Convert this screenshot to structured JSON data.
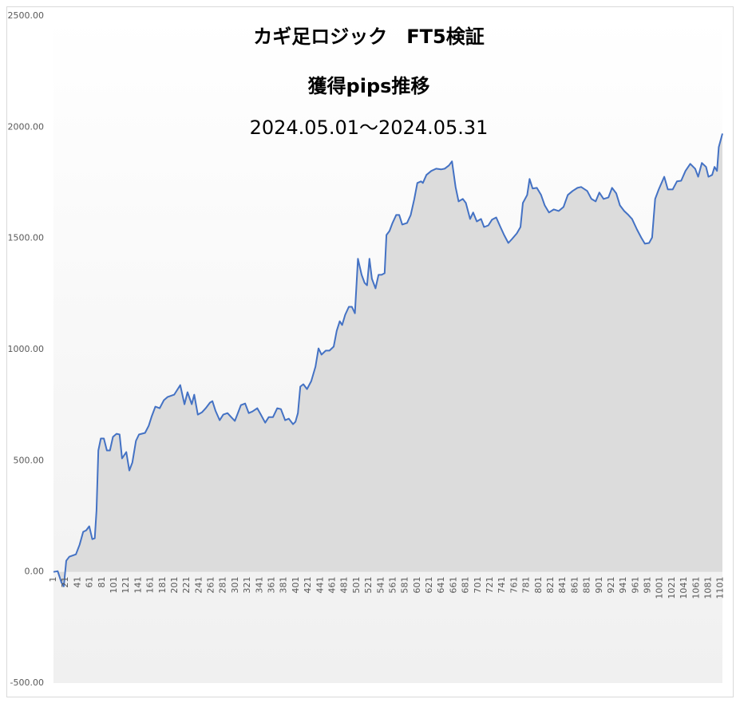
{
  "chart_data": {
    "type": "area",
    "title": [
      "カギ足ロジック　FT5検証",
      "獲得pips推移",
      "2024.05.01～2024.05.31"
    ],
    "color": "#4472c4",
    "x": [
      1,
      8,
      14,
      18,
      22,
      27,
      38,
      44,
      50,
      55,
      60,
      65,
      69,
      72,
      75,
      79,
      84,
      89,
      94,
      99,
      105,
      110,
      114,
      121,
      126,
      131,
      137,
      142,
      152,
      158,
      163,
      169,
      176,
      183,
      189,
      200,
      210,
      217,
      222,
      229,
      233,
      239,
      246,
      252,
      259,
      263,
      268,
      275,
      281,
      288,
      295,
      300,
      305,
      310,
      317,
      323,
      329,
      337,
      343,
      350,
      356,
      363,
      370,
      376,
      383,
      389,
      396,
      400,
      404,
      408,
      413,
      419,
      426,
      433,
      438,
      443,
      450,
      456,
      463,
      468,
      473,
      477,
      482,
      488,
      493,
      498,
      503,
      509,
      514,
      518,
      522,
      526,
      532,
      537,
      542,
      547,
      550,
      555,
      560,
      566,
      571,
      576,
      584,
      590,
      596,
      601,
      607,
      610,
      616,
      624,
      632,
      640,
      646,
      653,
      658,
      664,
      669,
      676,
      681,
      688,
      693,
      699,
      706,
      711,
      718,
      724,
      731,
      738,
      744,
      751,
      757,
      765,
      771,
      775,
      782,
      786,
      791,
      798,
      805,
      811,
      818,
      826,
      834,
      842,
      849,
      857,
      865,
      871,
      881,
      888,
      895,
      901,
      908,
      916,
      922,
      929,
      935,
      942,
      949,
      955,
      963,
      970,
      976,
      983,
      988,
      993,
      999,
      1008,
      1014,
      1022,
      1029,
      1036,
      1043,
      1051,
      1059,
      1064,
      1070,
      1077,
      1081,
      1087,
      1091,
      1095,
      1098,
      1104
    ],
    "values": [
      0,
      3,
      -47,
      -65,
      50,
      68,
      79,
      122,
      180,
      187,
      205,
      147,
      151,
      276,
      546,
      600,
      600,
      546,
      546,
      607,
      621,
      618,
      510,
      539,
      456,
      492,
      589,
      618,
      625,
      657,
      700,
      743,
      736,
      772,
      786,
      797,
      840,
      754,
      808,
      754,
      797,
      707,
      718,
      736,
      761,
      768,
      725,
      682,
      707,
      714,
      693,
      679,
      714,
      750,
      757,
      714,
      721,
      736,
      707,
      671,
      696,
      696,
      736,
      732,
      682,
      689,
      664,
      675,
      714,
      833,
      844,
      822,
      858,
      923,
      1005,
      977,
      995,
      995,
      1013,
      1084,
      1127,
      1110,
      1156,
      1192,
      1192,
      1163,
      1408,
      1336,
      1300,
      1289,
      1408,
      1318,
      1275,
      1336,
      1336,
      1343,
      1515,
      1533,
      1569,
      1605,
      1605,
      1562,
      1569,
      1605,
      1677,
      1749,
      1756,
      1749,
      1785,
      1803,
      1813,
      1810,
      1813,
      1828,
      1846,
      1731,
      1666,
      1677,
      1659,
      1587,
      1616,
      1576,
      1587,
      1551,
      1558,
      1584,
      1594,
      1551,
      1515,
      1479,
      1497,
      1522,
      1551,
      1659,
      1695,
      1767,
      1724,
      1727,
      1695,
      1648,
      1616,
      1630,
      1623,
      1641,
      1695,
      1713,
      1727,
      1731,
      1713,
      1677,
      1666,
      1706,
      1677,
      1684,
      1727,
      1702,
      1648,
      1623,
      1605,
      1587,
      1540,
      1504,
      1476,
      1479,
      1504,
      1677,
      1720,
      1777,
      1720,
      1720,
      1756,
      1759,
      1803,
      1835,
      1813,
      1777,
      1839,
      1821,
      1777,
      1785,
      1821,
      1803,
      1910,
      1971
    ],
    "xlim": [
      1,
      1104
    ],
    "xticks": [
      1,
      21,
      41,
      61,
      81,
      101,
      121,
      141,
      161,
      181,
      201,
      221,
      241,
      261,
      281,
      301,
      321,
      341,
      361,
      381,
      401,
      421,
      441,
      461,
      481,
      501,
      521,
      541,
      561,
      581,
      601,
      621,
      641,
      661,
      681,
      701,
      721,
      741,
      761,
      781,
      801,
      821,
      841,
      861,
      881,
      901,
      921,
      941,
      961,
      981,
      1001,
      1021,
      1041,
      1061,
      1081,
      1101
    ],
    "ylim": [
      -500,
      2500
    ],
    "yticks": [
      {
        "value": -500,
        "label": "-500.00"
      },
      {
        "value": 0,
        "label": "0.00"
      },
      {
        "value": 500,
        "label": "500.00"
      },
      {
        "value": 1000,
        "label": "1000.00"
      },
      {
        "value": 1500,
        "label": "1500.00"
      },
      {
        "value": 2000,
        "label": "2000.00"
      },
      {
        "value": 2500,
        "label": "2500.00"
      }
    ]
  }
}
